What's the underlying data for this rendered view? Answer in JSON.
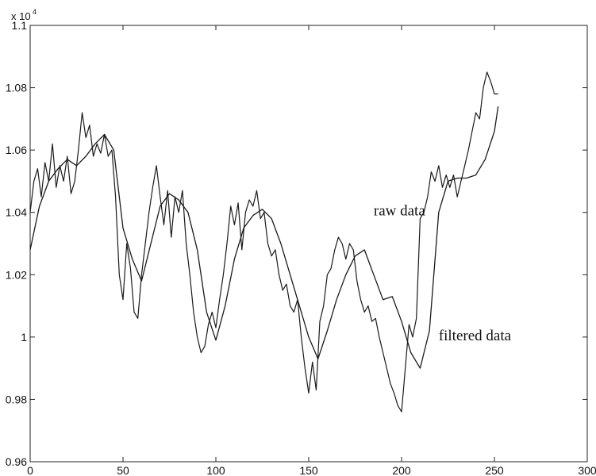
{
  "chart_data": {
    "type": "line",
    "title": "",
    "xlabel": "",
    "ylabel": "",
    "xlim": [
      0,
      300
    ],
    "ylim": [
      0.96,
      1.1
    ],
    "y_multiplier_label": "x 10",
    "y_multiplier_exponent": "4",
    "x_ticks": [
      "0",
      "50",
      "100",
      "150",
      "200",
      "250",
      "300"
    ],
    "y_ticks": [
      "0.96",
      "0.98",
      "1",
      "1.02",
      "1.04",
      "1.06",
      "1.08",
      "1.1"
    ],
    "grid": false,
    "legend": "none",
    "annotations": [
      {
        "text": "raw data",
        "x": 185,
        "y": 1.039
      },
      {
        "text": "filtered data",
        "x": 220,
        "y": 0.999
      }
    ],
    "series": [
      {
        "id": "raw",
        "x": [
          0,
          2,
          4,
          6,
          8,
          10,
          12,
          14,
          16,
          18,
          20,
          22,
          24,
          26,
          28,
          30,
          32,
          34,
          36,
          38,
          40,
          42,
          44,
          46,
          48,
          50,
          52,
          54,
          56,
          58,
          60,
          62,
          64,
          66,
          68,
          70,
          72,
          74,
          76,
          78,
          80,
          82,
          84,
          86,
          88,
          90,
          92,
          94,
          96,
          98,
          100,
          102,
          104,
          106,
          108,
          110,
          112,
          114,
          116,
          118,
          120,
          122,
          124,
          126,
          128,
          130,
          132,
          134,
          136,
          138,
          140,
          142,
          144,
          146,
          148,
          150,
          152,
          154,
          156,
          158,
          160,
          162,
          164,
          166,
          168,
          170,
          172,
          174,
          176,
          178,
          180,
          182,
          184,
          186,
          188,
          190,
          192,
          194,
          196,
          198,
          200,
          202,
          204,
          206,
          208,
          210,
          212,
          214,
          216,
          218,
          220,
          222,
          224,
          226,
          228,
          230,
          232,
          234,
          236,
          238,
          240,
          242,
          244,
          246,
          248,
          250,
          252
        ],
        "values": [
          1.04,
          1.05,
          1.054,
          1.045,
          1.056,
          1.05,
          1.062,
          1.048,
          1.055,
          1.05,
          1.058,
          1.046,
          1.05,
          1.06,
          1.072,
          1.064,
          1.068,
          1.058,
          1.062,
          1.059,
          1.065,
          1.058,
          1.06,
          1.045,
          1.02,
          1.012,
          1.03,
          1.022,
          1.008,
          1.006,
          1.02,
          1.03,
          1.04,
          1.048,
          1.055,
          1.045,
          1.036,
          1.047,
          1.032,
          1.045,
          1.04,
          1.047,
          1.03,
          1.02,
          1.008,
          1.0,
          0.995,
          0.997,
          1.004,
          1.008,
          1.003,
          1.012,
          1.02,
          1.03,
          1.042,
          1.036,
          1.043,
          1.028,
          1.04,
          1.044,
          1.042,
          1.047,
          1.038,
          1.04,
          1.03,
          1.026,
          1.028,
          1.02,
          1.015,
          1.017,
          1.01,
          1.008,
          1.012,
          1.0,
          0.99,
          0.982,
          0.992,
          0.983,
          1.005,
          1.01,
          1.02,
          1.022,
          1.028,
          1.032,
          1.03,
          1.025,
          1.03,
          1.028,
          1.018,
          1.012,
          1.008,
          1.01,
          1.005,
          1.006,
          1.0,
          0.995,
          0.99,
          0.985,
          0.982,
          0.978,
          0.976,
          0.99,
          1.004,
          1.0,
          1.006,
          1.038,
          1.04,
          1.045,
          1.053,
          1.05,
          1.055,
          1.048,
          1.052,
          1.048,
          1.052,
          1.045,
          1.05,
          1.055,
          1.06,
          1.066,
          1.072,
          1.07,
          1.08,
          1.085,
          1.082,
          1.078,
          1.078
        ]
      },
      {
        "id": "filtered",
        "x": [
          0,
          5,
          10,
          15,
          20,
          25,
          30,
          35,
          40,
          45,
          50,
          55,
          60,
          65,
          70,
          75,
          80,
          85,
          90,
          95,
          100,
          105,
          110,
          115,
          120,
          125,
          130,
          135,
          140,
          145,
          150,
          155,
          160,
          165,
          170,
          175,
          180,
          185,
          190,
          195,
          200,
          205,
          210,
          215,
          220,
          225,
          230,
          235,
          240,
          245,
          250,
          252
        ],
        "values": [
          1.028,
          1.042,
          1.05,
          1.054,
          1.057,
          1.055,
          1.058,
          1.062,
          1.065,
          1.06,
          1.035,
          1.025,
          1.018,
          1.03,
          1.042,
          1.046,
          1.044,
          1.04,
          1.028,
          1.008,
          0.999,
          1.01,
          1.025,
          1.035,
          1.039,
          1.041,
          1.038,
          1.03,
          1.02,
          1.01,
          1.0,
          0.993,
          1.002,
          1.012,
          1.02,
          1.026,
          1.028,
          1.02,
          1.012,
          1.013,
          1.005,
          0.995,
          0.99,
          1.002,
          1.04,
          1.05,
          1.051,
          1.051,
          1.052,
          1.057,
          1.066,
          1.074
        ]
      }
    ]
  }
}
